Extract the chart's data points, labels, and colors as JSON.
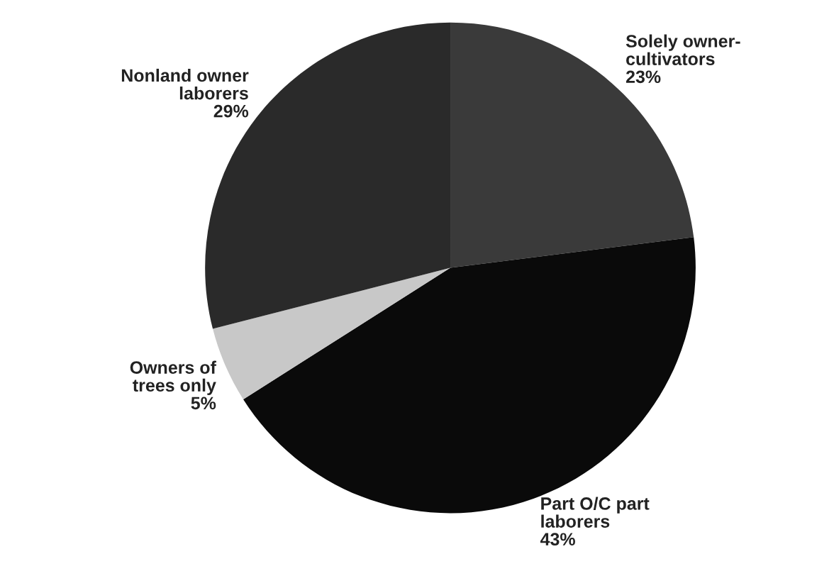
{
  "chart_data": {
    "type": "pie",
    "categories": [
      "Solely owner-\ncultivators",
      "Part O/C part\nlaborers",
      "Owners of\ntrees only",
      "Nonland owner\nlaborers"
    ],
    "values": [
      23,
      43,
      5,
      29
    ],
    "colors": [
      "#3a3a3a",
      "#0a0a0a",
      "#c8c8c8",
      "#2a2a2a"
    ],
    "value_labels": [
      "23%",
      "43%",
      "5%",
      "29%"
    ]
  }
}
